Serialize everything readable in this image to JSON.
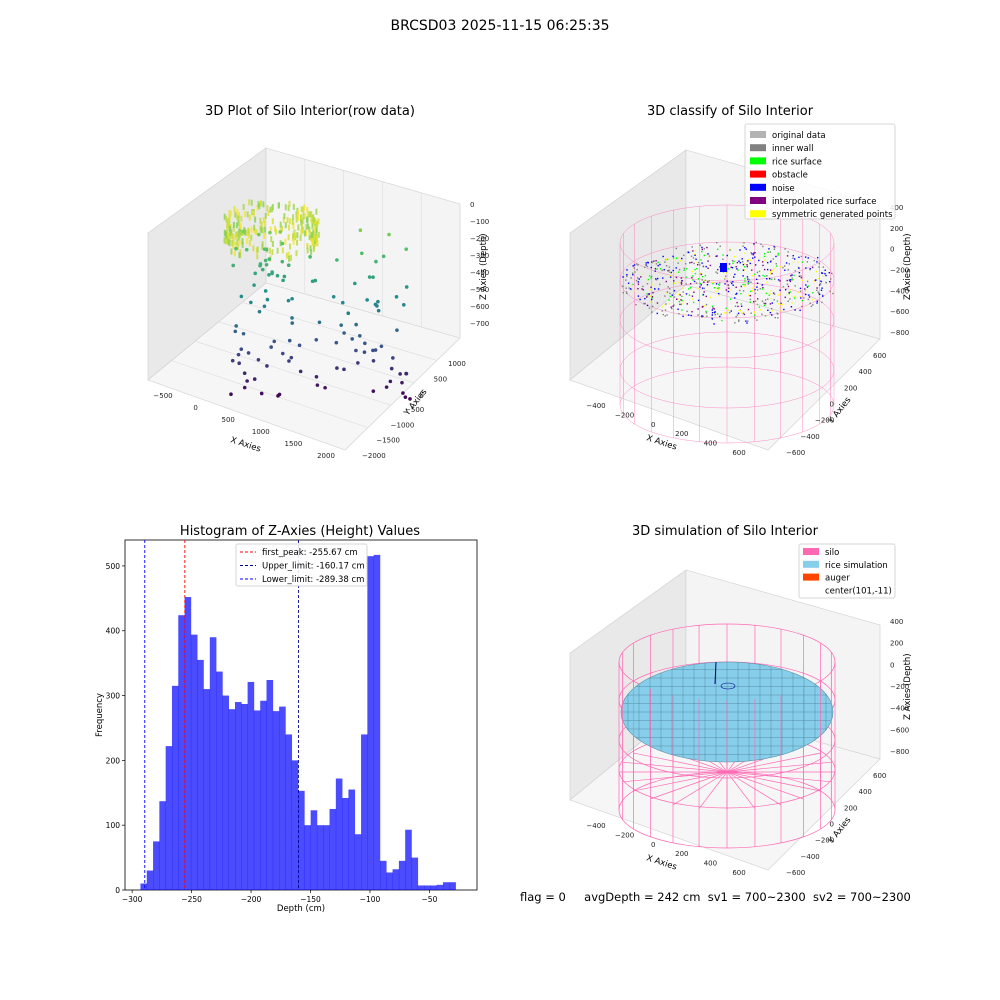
{
  "suptitle": "BRCSD03 2025-11-15 06:25:35",
  "footer": {
    "flag": "flag = 0",
    "avg_depth": "avgDepth = 242 cm",
    "sv1": "sv1 = 700~2300",
    "sv2": "sv2 = 700~2300"
  },
  "panel_raw": {
    "title": "3D Plot of Silo Interior(row data)",
    "xlabel": "X Axies",
    "ylabel": "Y Axies",
    "zlabel": "Z Axies (Depth)",
    "x_ticks": [
      "−500",
      "0",
      "500",
      "1000",
      "1500",
      "2000"
    ],
    "y_ticks": [
      "1000",
      "500",
      "0",
      "−500",
      "−1000",
      "−1500",
      "−2000"
    ],
    "z_ticks": [
      "0",
      "−100",
      "−200",
      "−300",
      "−400",
      "−500",
      "−600",
      "−700"
    ]
  },
  "panel_classify": {
    "title": "3D classify of Silo Interior",
    "xlabel": "X Axies",
    "ylabel": "Y Axies",
    "zlabel": "Z Axies (Depth)",
    "x_ticks": [
      "−400",
      "−200",
      "0",
      "200",
      "400",
      "600"
    ],
    "y_ticks": [
      "600",
      "400",
      "200",
      "0",
      "−200",
      "−400",
      "−600"
    ],
    "z_ticks": [
      "400",
      "200",
      "0",
      "−200",
      "−400",
      "−600",
      "−800"
    ],
    "legend": [
      {
        "label": "original data",
        "color": "#b3b3b3"
      },
      {
        "label": "inner wall",
        "color": "#808080"
      },
      {
        "label": "rice surface",
        "color": "#00ff00"
      },
      {
        "label": "obstacle",
        "color": "#ff0000"
      },
      {
        "label": "noise",
        "color": "#0000ff"
      },
      {
        "label": "interpolated rice surface",
        "color": "#800080"
      },
      {
        "label": "symmetric generated points",
        "color": "#ffff00"
      }
    ]
  },
  "panel_sim": {
    "title": "3D simulation of Silo Interior",
    "xlabel": "X Axies",
    "ylabel": "Y Axies",
    "zlabel": "Z Axies (Depth)",
    "x_ticks": [
      "−400",
      "−200",
      "0",
      "200",
      "400",
      "600"
    ],
    "y_ticks": [
      "600",
      "400",
      "200",
      "0",
      "−200",
      "−400",
      "−600"
    ],
    "z_ticks": [
      "400",
      "200",
      "0",
      "−200",
      "−400",
      "−600",
      "−800"
    ],
    "legend": [
      {
        "label": "silo",
        "color": "#ff69b4"
      },
      {
        "label": "rice simulation",
        "color": "#87ceeb"
      },
      {
        "label": "auger",
        "color": "#ff4500"
      },
      {
        "label": "center(101,-11)",
        "color": ""
      }
    ]
  },
  "chart_data": {
    "type": "bar",
    "title": "Histogram of Z-Axies (Height) Values",
    "xlabel": "Depth (cm)",
    "ylabel": "Frequency",
    "xlim": [
      -306,
      -10
    ],
    "ylim": [
      0,
      540
    ],
    "x_ticks": [
      -300,
      -250,
      -200,
      -150,
      -100,
      -50
    ],
    "x_tick_labels": [
      "−300",
      "−250",
      "−200",
      "−150",
      "−100",
      "−50"
    ],
    "y_ticks": [
      0,
      100,
      200,
      300,
      400,
      500
    ],
    "y_tick_labels": [
      "0",
      "100",
      "200",
      "300",
      "400",
      "500"
    ],
    "bin_start": -293,
    "bin_width": 5.3,
    "values": [
      10,
      30,
      75,
      137,
      222,
      315,
      424,
      452,
      394,
      355,
      310,
      390,
      337,
      300,
      279,
      290,
      287,
      321,
      277,
      292,
      324,
      276,
      283,
      240,
      200,
      153,
      100,
      123,
      100,
      100,
      125,
      172,
      142,
      155,
      86,
      240,
      515,
      517,
      45,
      27,
      32,
      45,
      93,
      50,
      7,
      7,
      7,
      8,
      12,
      12
    ],
    "bar_color": "#0000ff",
    "vlines": [
      {
        "label": "first_peak: -255.67 cm",
        "x": -255.67,
        "color": "#ff0000"
      },
      {
        "label": "Upper_limit: -160.17 cm",
        "x": -160.17,
        "color": "#00008b"
      },
      {
        "label": "Lower_limit: -289.38 cm",
        "x": -289.38,
        "color": "#0000ff"
      }
    ],
    "legend_position": "upper center"
  }
}
